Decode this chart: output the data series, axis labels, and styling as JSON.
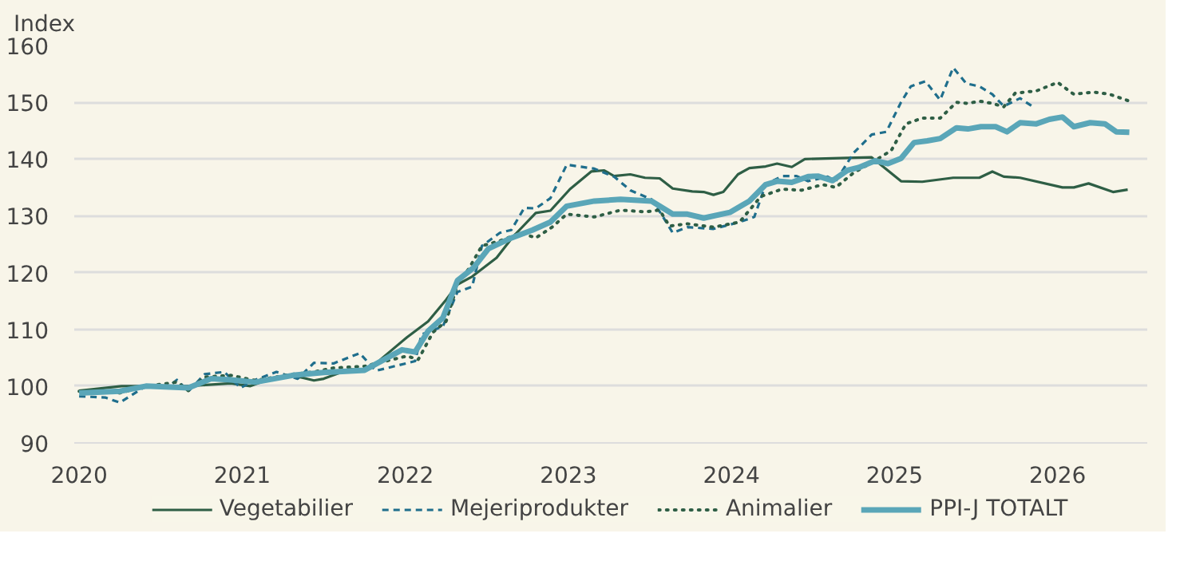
{
  "chart_data": {
    "type": "line",
    "ylabel": "Index",
    "xlim": [
      2019.97,
      2026.55
    ],
    "xticks": [
      2020,
      2021,
      2022,
      2023,
      2024,
      2025,
      2026
    ],
    "ylim": [
      90,
      160
    ],
    "yticks": [
      90,
      100,
      110,
      120,
      130,
      140,
      150,
      160
    ],
    "grid": "y",
    "legend": "bottom",
    "line_style": "solid",
    "series": [
      {
        "name": "Vegetabilier",
        "color": "#2e5e45",
        "x": [
          2020.0,
          2020.26,
          2020.67,
          2020.93,
          2021.05,
          2021.18,
          2021.31,
          2021.44,
          2021.5,
          2021.66,
          2021.75,
          2021.82,
          2022.01,
          2022.14,
          2022.25,
          2022.32,
          2022.41,
          2022.56,
          2022.66,
          2022.8,
          2022.89,
          2023.01,
          2023.14,
          2023.22,
          2023.28,
          2023.38,
          2023.47,
          2023.56,
          2023.64,
          2023.76,
          2023.83,
          2023.89,
          2023.95,
          2024.04,
          2024.11,
          2024.21,
          2024.28,
          2024.37,
          2024.45,
          2024.71,
          2024.86,
          2025.04,
          2025.17,
          2025.36,
          2025.52,
          2025.6,
          2025.67,
          2025.77,
          2026.03,
          2026.1,
          2026.19,
          2026.34,
          2026.43
        ],
        "values": [
          99.2,
          100,
          100,
          100.5,
          100,
          101.4,
          101.9,
          101,
          101.3,
          103,
          102.7,
          104,
          108.6,
          111.4,
          115.2,
          117.9,
          119.3,
          122.6,
          126.3,
          130.5,
          130.9,
          134.7,
          137.8,
          138,
          137,
          137.3,
          136.7,
          136.6,
          134.8,
          134.3,
          134.2,
          133.7,
          134.2,
          137.3,
          138.4,
          138.7,
          139.2,
          138.6,
          140,
          140.2,
          140.3,
          136.1,
          136,
          136.7,
          136.7,
          137.8,
          136.9,
          136.7,
          135,
          135,
          135.7,
          134.2,
          134.6
        ]
      },
      {
        "name": "Mejeriprodukter",
        "color": "#1f6e8c",
        "line_style": "dashed",
        "x": [
          2020.0,
          2020.16,
          2020.25,
          2020.41,
          2020.54,
          2020.6,
          2020.67,
          2020.77,
          2020.89,
          2020.99,
          2021.08,
          2021.21,
          2021.34,
          2021.44,
          2021.56,
          2021.72,
          2021.82,
          2022.06,
          2022.1,
          2022.23,
          2022.32,
          2022.41,
          2022.47,
          2022.58,
          2022.65,
          2022.73,
          2022.8,
          2022.89,
          2022.99,
          2023.16,
          2023.28,
          2023.38,
          2023.51,
          2023.57,
          2023.64,
          2023.73,
          2023.89,
          2024.05,
          2024.14,
          2024.21,
          2024.31,
          2024.4,
          2024.47,
          2024.59,
          2024.64,
          2024.75,
          2024.86,
          2024.95,
          2025.04,
          2025.1,
          2025.19,
          2025.28,
          2025.36,
          2025.44,
          2025.52,
          2025.6,
          2025.67,
          2025.77,
          2025.86
        ],
        "values": [
          98.2,
          98,
          97.1,
          100,
          99.7,
          101.1,
          99.1,
          102.1,
          102.5,
          99.7,
          101.1,
          102.5,
          101.3,
          104.1,
          104,
          105.8,
          102.7,
          104.4,
          109.1,
          110.5,
          116.6,
          117.5,
          124.7,
          127,
          127.5,
          131.4,
          131.3,
          133.1,
          139,
          138.3,
          136.9,
          134.5,
          132.9,
          130.3,
          127,
          128,
          127.7,
          128.9,
          129.8,
          135.5,
          137,
          137,
          136.1,
          136.9,
          136.1,
          141.1,
          144.3,
          144.8,
          150,
          152.8,
          153.7,
          150.4,
          156.1,
          153.3,
          152.8,
          151.4,
          149.3,
          150.7,
          149
        ]
      },
      {
        "name": "Animalier",
        "color": "#2e5e45",
        "line_style": "dotted",
        "x": [
          2020.0,
          2020.25,
          2020.41,
          2020.6,
          2020.67,
          2020.77,
          2020.93,
          2021.08,
          2021.31,
          2021.44,
          2021.56,
          2021.75,
          2022.01,
          2022.08,
          2022.17,
          2022.25,
          2022.32,
          2022.39,
          2022.47,
          2022.58,
          2022.71,
          2022.8,
          2022.9,
          2022.99,
          2023.16,
          2023.32,
          2023.47,
          2023.56,
          2023.62,
          2023.73,
          2023.89,
          2024.05,
          2024.18,
          2024.31,
          2024.43,
          2024.56,
          2024.64,
          2024.75,
          2024.85,
          2024.98,
          2025.07,
          2025.17,
          2025.28,
          2025.38,
          2025.45,
          2025.52,
          2025.6,
          2025.67,
          2025.74,
          2025.87,
          2026.0,
          2026.1,
          2026.22,
          2026.32,
          2026.43
        ],
        "values": [
          99.1,
          98.8,
          100,
          100.7,
          99.2,
          101.6,
          101.9,
          101,
          102.1,
          102.5,
          103.2,
          103.5,
          105.3,
          104.7,
          109.5,
          111.4,
          117.9,
          120.7,
          124.7,
          125.6,
          127,
          126.1,
          128,
          130.3,
          129.8,
          131,
          130.7,
          131,
          128.2,
          128.6,
          128,
          128.9,
          133.4,
          134.7,
          134.5,
          135.5,
          135,
          137.6,
          139.2,
          141.5,
          146.2,
          147.2,
          147.2,
          150,
          149.8,
          150.2,
          149.8,
          149.2,
          151.6,
          152,
          153.5,
          151.4,
          151.8,
          151.4,
          150.3
        ]
      },
      {
        "name": "PPI-J TOTALT",
        "color": "#5aa6b8",
        "x": [
          2020.0,
          2020.25,
          2020.41,
          2020.67,
          2020.81,
          2020.93,
          2021.08,
          2021.31,
          2021.5,
          2021.75,
          2021.98,
          2022.06,
          2022.14,
          2022.23,
          2022.32,
          2022.42,
          2022.51,
          2022.65,
          2022.78,
          2022.89,
          2022.99,
          2023.16,
          2023.32,
          2023.51,
          2023.64,
          2023.73,
          2023.83,
          2023.99,
          2024.11,
          2024.21,
          2024.28,
          2024.37,
          2024.47,
          2024.53,
          2024.62,
          2024.71,
          2024.78,
          2024.88,
          2024.96,
          2025.04,
          2025.12,
          2025.2,
          2025.28,
          2025.38,
          2025.45,
          2025.53,
          2025.62,
          2025.69,
          2025.77,
          2025.87,
          2025.95,
          2026.03,
          2026.1,
          2026.2,
          2026.29,
          2026.36,
          2026.44
        ],
        "values": [
          98.8,
          99.1,
          100,
          99.7,
          101.3,
          101.1,
          100.7,
          101.9,
          102.4,
          102.8,
          106.4,
          106,
          109.7,
          112,
          118.6,
          120.9,
          124.2,
          126.1,
          127.5,
          128.9,
          131.7,
          132.6,
          132.9,
          132.6,
          130.3,
          130.3,
          129.6,
          130.6,
          132.6,
          135.5,
          136.1,
          135.9,
          136.9,
          137,
          136.2,
          138,
          138.5,
          139.7,
          139.2,
          140.1,
          142.9,
          143.2,
          143.6,
          145.5,
          145.3,
          145.7,
          145.7,
          144.8,
          146.4,
          146.2,
          147,
          147.4,
          145.7,
          146.4,
          146.2,
          144.8,
          144.7
        ]
      }
    ]
  }
}
